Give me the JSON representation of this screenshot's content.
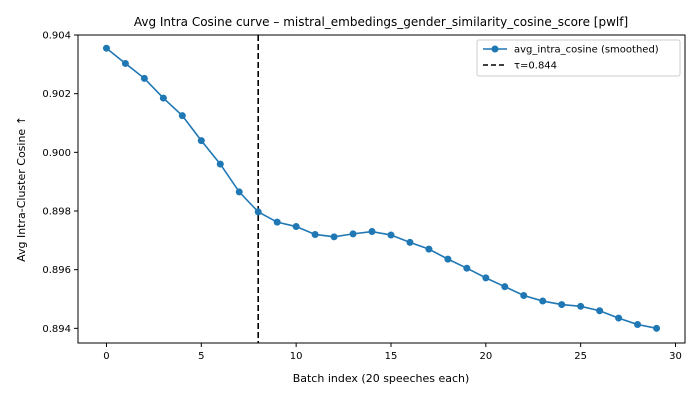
{
  "chart_data": {
    "type": "line",
    "title": "Avg Intra Cosine curve – mistral_embedings_gender_similarity_cosine_score [pwlf]",
    "xlabel": "Batch index (20 speeches each)",
    "ylabel": "Avg Intra-Cluster Cosine ↑",
    "xlim": [
      -1.5,
      30.5
    ],
    "ylim": [
      0.8935,
      0.904
    ],
    "x_ticks": [
      0,
      5,
      10,
      15,
      20,
      25,
      30
    ],
    "y_ticks": [
      0.894,
      0.896,
      0.898,
      0.9,
      0.902,
      0.904
    ],
    "x_tick_labels": [
      "0",
      "5",
      "10",
      "15",
      "20",
      "25",
      "30"
    ],
    "y_tick_labels": [
      "0.894",
      "0.896",
      "0.898",
      "0.900",
      "0.902",
      "0.904"
    ],
    "grid": false,
    "legend_position": "top-right",
    "series": [
      {
        "name": "avg_intra_cosine (smoothed)",
        "color": "#1f77b4",
        "marker": "circle",
        "x": [
          0,
          1,
          2,
          3,
          4,
          5,
          6,
          7,
          8,
          9,
          10,
          11,
          12,
          13,
          14,
          15,
          16,
          17,
          18,
          19,
          20,
          21,
          22,
          23,
          24,
          25,
          26,
          27,
          28,
          29
        ],
        "values": [
          0.90355,
          0.90303,
          0.90252,
          0.90185,
          0.90125,
          0.9004,
          0.8996,
          0.89865,
          0.89797,
          0.89762,
          0.89747,
          0.8972,
          0.89712,
          0.89722,
          0.8973,
          0.89718,
          0.89693,
          0.8967,
          0.89636,
          0.89605,
          0.89572,
          0.89542,
          0.89512,
          0.89493,
          0.89481,
          0.89475,
          0.8946,
          0.89435,
          0.89413,
          0.894
        ]
      }
    ],
    "vlines": [
      {
        "name": "τ=0.844",
        "x": 8,
        "color": "#000000",
        "style": "dashed"
      }
    ]
  }
}
